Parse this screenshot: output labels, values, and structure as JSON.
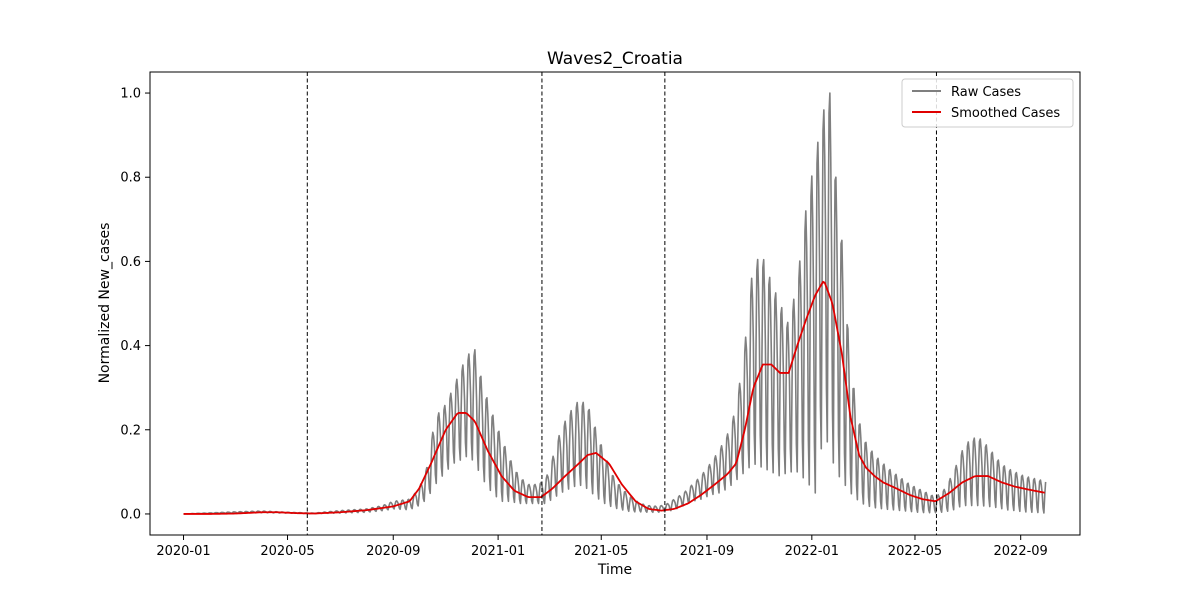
{
  "chart_data": {
    "type": "line",
    "title": "Waves2_Croatia",
    "xlabel": "Time",
    "ylabel": "Normalized New_cases",
    "xlim": [
      "2019-11-23",
      "2022-11-09"
    ],
    "ylim": [
      -0.05,
      1.05
    ],
    "x_ticks": [
      "2020-01",
      "2020-05",
      "2020-09",
      "2021-01",
      "2021-05",
      "2021-09",
      "2022-01",
      "2022-05",
      "2022-09"
    ],
    "y_ticks": [
      "0.0",
      "0.2",
      "0.4",
      "0.6",
      "0.8",
      "1.0"
    ],
    "grid": false,
    "legend_position": "top-right",
    "wave_boundaries": [
      "2020-05-24",
      "2021-02-21",
      "2021-07-14",
      "2022-05-26"
    ],
    "series": [
      {
        "name": "Raw Cases",
        "color": "#7f7f7f",
        "style": "weekly-oscillating",
        "x": [
          "2020-01-01",
          "2020-03-01",
          "2020-04-01",
          "2020-05-01",
          "2020-06-01",
          "2020-07-01",
          "2020-08-01",
          "2020-08-20",
          "2020-09-01",
          "2020-09-20",
          "2020-10-01",
          "2020-10-10",
          "2020-10-20",
          "2020-11-01",
          "2020-11-10",
          "2020-11-20",
          "2020-11-28",
          "2020-12-05",
          "2020-12-15",
          "2020-12-25",
          "2021-01-05",
          "2021-01-15",
          "2021-01-25",
          "2021-02-05",
          "2021-02-15",
          "2021-02-25",
          "2021-03-05",
          "2021-03-15",
          "2021-03-25",
          "2021-04-05",
          "2021-04-15",
          "2021-04-25",
          "2021-05-05",
          "2021-05-15",
          "2021-05-25",
          "2021-06-05",
          "2021-06-15",
          "2021-06-25",
          "2021-07-05",
          "2021-07-15",
          "2021-07-25",
          "2021-08-05",
          "2021-08-15",
          "2021-08-25",
          "2021-09-05",
          "2021-09-15",
          "2021-09-25",
          "2021-10-05",
          "2021-10-15",
          "2021-10-25",
          "2021-11-05",
          "2021-11-15",
          "2021-11-25",
          "2021-12-05",
          "2021-12-15",
          "2021-12-25",
          "2022-01-05",
          "2022-01-15",
          "2022-01-22",
          "2022-01-29",
          "2022-02-05",
          "2022-02-15",
          "2022-02-25",
          "2022-03-05",
          "2022-03-15",
          "2022-03-25",
          "2022-04-05",
          "2022-04-15",
          "2022-04-25",
          "2022-05-05",
          "2022-05-15",
          "2022-05-25",
          "2022-06-05",
          "2022-06-15",
          "2022-06-25",
          "2022-07-05",
          "2022-07-15",
          "2022-07-25",
          "2022-08-05",
          "2022-08-15",
          "2022-08-25",
          "2022-09-05",
          "2022-09-15",
          "2022-09-25",
          "2022-09-30"
        ],
        "peak": [
          0.0,
          0.005,
          0.007,
          0.004,
          0.002,
          0.008,
          0.012,
          0.02,
          0.03,
          0.035,
          0.06,
          0.11,
          0.23,
          0.26,
          0.3,
          0.35,
          0.38,
          0.39,
          0.3,
          0.24,
          0.18,
          0.13,
          0.09,
          0.07,
          0.07,
          0.08,
          0.13,
          0.2,
          0.24,
          0.27,
          0.26,
          0.2,
          0.14,
          0.09,
          0.06,
          0.04,
          0.025,
          0.02,
          0.018,
          0.022,
          0.035,
          0.05,
          0.07,
          0.09,
          0.12,
          0.15,
          0.19,
          0.25,
          0.4,
          0.6,
          0.61,
          0.55,
          0.5,
          0.45,
          0.55,
          0.72,
          0.85,
          0.96,
          1.0,
          0.8,
          0.65,
          0.35,
          0.22,
          0.17,
          0.14,
          0.12,
          0.1,
          0.085,
          0.07,
          0.06,
          0.05,
          0.04,
          0.06,
          0.1,
          0.15,
          0.18,
          0.18,
          0.16,
          0.13,
          0.11,
          0.1,
          0.09,
          0.085,
          0.08,
          0.08
        ],
        "trough": [
          0.0,
          0.002,
          0.003,
          0.002,
          0.001,
          0.002,
          0.004,
          0.008,
          0.012,
          0.01,
          0.02,
          0.035,
          0.07,
          0.1,
          0.12,
          0.13,
          0.14,
          0.12,
          0.08,
          0.05,
          0.03,
          0.03,
          0.025,
          0.025,
          0.025,
          0.025,
          0.035,
          0.05,
          0.06,
          0.07,
          0.06,
          0.04,
          0.025,
          0.015,
          0.01,
          0.005,
          0.005,
          0.004,
          0.004,
          0.005,
          0.01,
          0.02,
          0.03,
          0.035,
          0.045,
          0.05,
          0.06,
          0.08,
          0.1,
          0.12,
          0.11,
          0.1,
          0.09,
          0.1,
          0.1,
          0.08,
          0.05,
          0.2,
          0.15,
          0.1,
          0.08,
          0.05,
          0.03,
          0.02,
          0.015,
          0.012,
          0.01,
          0.008,
          0.006,
          0.004,
          0.003,
          0.003,
          0.005,
          0.01,
          0.02,
          0.02,
          0.02,
          0.018,
          0.015,
          0.01,
          0.008,
          0.005,
          0.004,
          0.003,
          0.002
        ]
      },
      {
        "name": "Smoothed Cases",
        "color": "#e00000",
        "x": [
          "2020-01-01",
          "2020-02-01",
          "2020-03-01",
          "2020-04-01",
          "2020-04-20",
          "2020-05-10",
          "2020-06-01",
          "2020-07-01",
          "2020-08-01",
          "2020-09-01",
          "2020-09-20",
          "2020-10-01",
          "2020-10-15",
          "2020-11-01",
          "2020-11-15",
          "2020-11-25",
          "2020-12-05",
          "2020-12-20",
          "2021-01-05",
          "2021-01-20",
          "2021-02-05",
          "2021-02-20",
          "2021-03-05",
          "2021-03-20",
          "2021-04-05",
          "2021-04-15",
          "2021-04-25",
          "2021-05-10",
          "2021-05-25",
          "2021-06-10",
          "2021-06-25",
          "2021-07-10",
          "2021-07-25",
          "2021-08-10",
          "2021-08-25",
          "2021-09-10",
          "2021-09-25",
          "2021-10-05",
          "2021-10-15",
          "2021-10-25",
          "2021-11-05",
          "2021-11-15",
          "2021-11-25",
          "2021-12-05",
          "2021-12-15",
          "2021-12-25",
          "2022-01-05",
          "2022-01-15",
          "2022-01-25",
          "2022-02-05",
          "2022-02-15",
          "2022-02-25",
          "2022-03-05",
          "2022-03-15",
          "2022-03-25",
          "2022-04-10",
          "2022-04-25",
          "2022-05-10",
          "2022-05-25",
          "2022-06-10",
          "2022-06-25",
          "2022-07-10",
          "2022-07-25",
          "2022-08-10",
          "2022-08-25",
          "2022-09-10",
          "2022-09-30"
        ],
        "y": [
          0.0,
          0.0,
          0.001,
          0.004,
          0.004,
          0.002,
          0.001,
          0.004,
          0.009,
          0.018,
          0.03,
          0.06,
          0.12,
          0.2,
          0.24,
          0.24,
          0.22,
          0.15,
          0.09,
          0.055,
          0.04,
          0.04,
          0.06,
          0.09,
          0.12,
          0.14,
          0.145,
          0.12,
          0.07,
          0.03,
          0.012,
          0.008,
          0.012,
          0.025,
          0.045,
          0.07,
          0.095,
          0.12,
          0.2,
          0.3,
          0.355,
          0.355,
          0.335,
          0.335,
          0.4,
          0.46,
          0.52,
          0.555,
          0.5,
          0.38,
          0.23,
          0.14,
          0.11,
          0.09,
          0.075,
          0.06,
          0.045,
          0.035,
          0.03,
          0.05,
          0.075,
          0.09,
          0.09,
          0.075,
          0.065,
          0.058,
          0.05
        ]
      }
    ]
  }
}
